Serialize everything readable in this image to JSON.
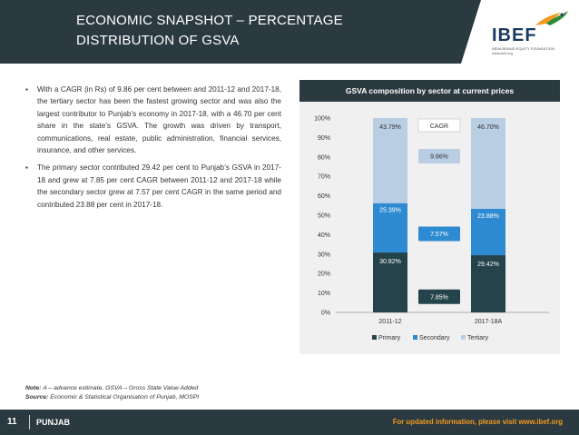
{
  "header": {
    "title_line1": "ECONOMIC SNAPSHOT – PERCENTAGE",
    "title_line2": "DISTRIBUTION OF GSVA"
  },
  "logo": {
    "name": "IBEF",
    "tagline": "INDIA BRAND EQUITY FOUNDATION",
    "url": "www.ibef.org"
  },
  "bullets": [
    "With a CAGR (in Rs) of 9.86 per cent between and 2011-12 and 2017-18, the tertiary sector has been the fastest growing sector and was also the largest contributor to Punjab’s economy in 2017-18, with a 46.70 per cent share in the state’s GSVA. The growth was driven by transport, communications, real estate, public administration, financial services, insurance, and other services.",
    "The primary sector contributed 29.42 per cent to Punjab’s GSVA in 2017-18 and grew at 7.85 per cent CAGR between 2011-12 and 2017-18 while the secondary sector grew at 7.57 per cent CAGR in the same period and contributed 23.88 per cent in 2017-18."
  ],
  "chart_data": {
    "type": "bar",
    "stacked": true,
    "title": "GSVA composition by sector at current prices",
    "categories": [
      "2011-12",
      "2017-18A"
    ],
    "series": [
      {
        "name": "Primary",
        "values": [
          30.82,
          29.42
        ],
        "labels": [
          "30.82%",
          "29.42%"
        ],
        "color": "#24434a"
      },
      {
        "name": "Secondary",
        "values": [
          25.39,
          23.88
        ],
        "labels": [
          "25.39%",
          "23.88%"
        ],
        "color": "#2e8ad1"
      },
      {
        "name": "Tertiary",
        "values": [
          43.79,
          46.7
        ],
        "labels": [
          "43.79%",
          "46.70%"
        ],
        "color": "#b9cde3"
      }
    ],
    "yticks": [
      "0%",
      "10%",
      "20%",
      "30%",
      "40%",
      "50%",
      "60%",
      "70%",
      "80%",
      "90%",
      "100%"
    ],
    "ylim": [
      0,
      100
    ],
    "legend_position": "bottom",
    "cagr_header": "CAGR",
    "cagr": [
      {
        "sector": "Tertiary",
        "value": 9.86,
        "label": "9.86%",
        "color": "#b9cde3"
      },
      {
        "sector": "Secondary",
        "value": 7.57,
        "label": "7.57%",
        "color": "#2e8ad1"
      },
      {
        "sector": "Primary",
        "value": 7.85,
        "label": "7.85%",
        "color": "#24434a"
      }
    ]
  },
  "notes": {
    "note_label": "Note:",
    "note_text": "A – advance estimate, GSVA – Gross State Value Added",
    "source_label": "Source:",
    "source_text": "Economic & Statistical Organisation of Punjab, MOSPI"
  },
  "footer": {
    "page_number": "11",
    "state": "PUNJAB",
    "url_text": "For updated information, please visit www.ibef.org"
  },
  "colors": {
    "dark": "#2b3a40",
    "accent_orange": "#f39a1e"
  }
}
